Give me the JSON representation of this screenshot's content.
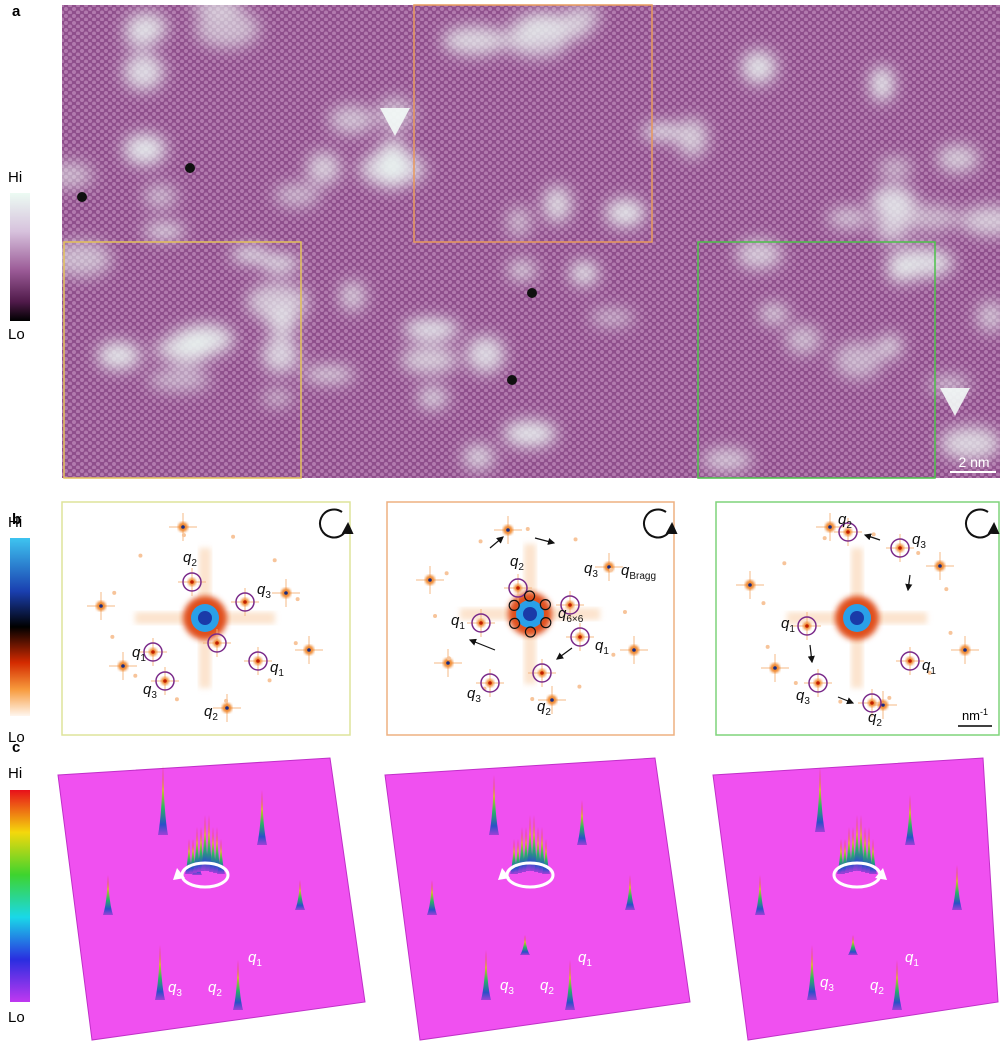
{
  "panel_a": {
    "label": "a",
    "colorbar": {
      "hi": "Hi",
      "lo": "Lo"
    },
    "scale_bar": "2 nm"
  },
  "panel_b": {
    "label": "b",
    "colorbar": {
      "hi": "Hi",
      "lo": "Lo"
    },
    "scale_bar": {
      "unit": "nm",
      "exponent": "-1"
    },
    "fft_panels": [
      {
        "labels": [
          {
            "base": "q",
            "sub": "2"
          },
          {
            "base": "q",
            "sub": "3"
          },
          {
            "base": "q",
            "sub": "1"
          },
          {
            "base": "q",
            "sub": "1"
          },
          {
            "base": "q",
            "sub": "3"
          },
          {
            "base": "q",
            "sub": "2"
          }
        ]
      },
      {
        "labels": [
          {
            "base": "q",
            "sub": "2"
          },
          {
            "base": "q",
            "sub": "3"
          },
          {
            "base": "q",
            "sub": "Bragg"
          },
          {
            "base": "q",
            "sub": "1"
          },
          {
            "base": "q",
            "sub": "6×6"
          },
          {
            "base": "q",
            "sub": "1"
          },
          {
            "base": "q",
            "sub": "3"
          },
          {
            "base": "q",
            "sub": "2"
          }
        ]
      },
      {
        "labels": [
          {
            "base": "q",
            "sub": "2"
          },
          {
            "base": "q",
            "sub": "3"
          },
          {
            "base": "q",
            "sub": "1"
          },
          {
            "base": "q",
            "sub": "1"
          },
          {
            "base": "q",
            "sub": "3"
          },
          {
            "base": "q",
            "sub": "2"
          }
        ]
      }
    ]
  },
  "panel_c": {
    "label": "c",
    "colorbar": {
      "hi": "Hi",
      "lo": "Lo"
    },
    "surface_panels": [
      {
        "labels": [
          {
            "base": "q",
            "sub": "1"
          },
          {
            "base": "q",
            "sub": "3"
          },
          {
            "base": "q",
            "sub": "2"
          }
        ]
      },
      {
        "labels": [
          {
            "base": "q",
            "sub": "3"
          },
          {
            "base": "q",
            "sub": "2"
          },
          {
            "base": "q",
            "sub": "1"
          }
        ]
      },
      {
        "labels": [
          {
            "base": "q",
            "sub": "3"
          },
          {
            "base": "q",
            "sub": "2"
          },
          {
            "base": "q",
            "sub": "1"
          }
        ]
      }
    ]
  }
}
